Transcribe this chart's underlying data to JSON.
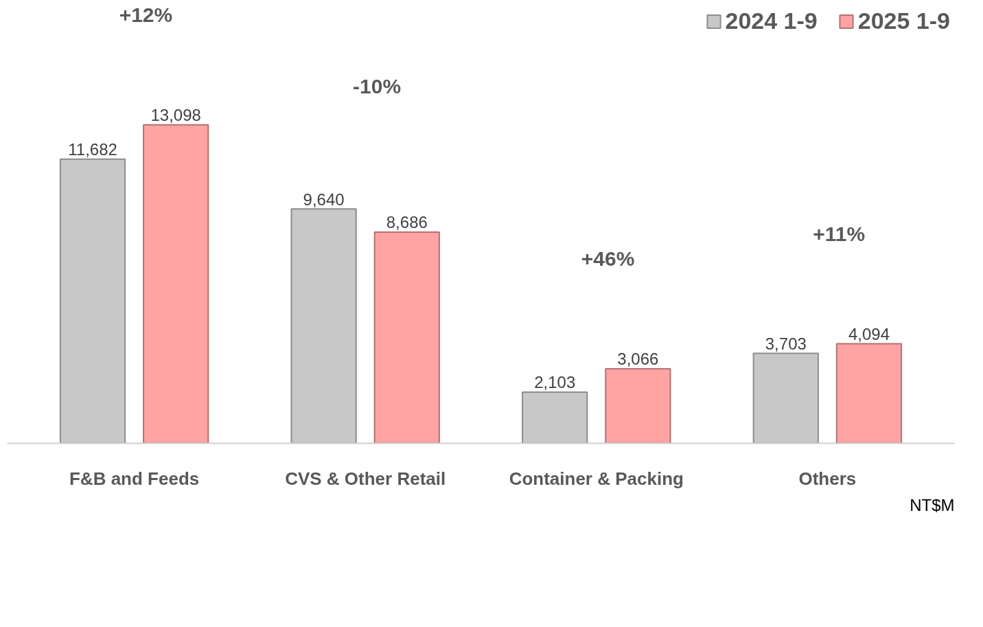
{
  "chart_data": {
    "type": "bar",
    "categories": [
      "F&B and Feeds",
      "CVS & Other Retail",
      "Container & Packing",
      "Others"
    ],
    "series": [
      {
        "name": "2024 1-9",
        "color": "#c8c8c8",
        "values": [
          11682,
          9640,
          2103,
          3703
        ],
        "value_labels": [
          "11,682",
          "9,640",
          "2,103",
          "3,703"
        ]
      },
      {
        "name": "2025 1-9",
        "color": "#ffa3a3",
        "values": [
          13098,
          8686,
          3066,
          4094
        ],
        "value_labels": [
          "13,098",
          "8,686",
          "3,066",
          "4,094"
        ]
      }
    ],
    "legend": "top right",
    "grid": false,
    "annotations": [
      "+12%",
      "-10%",
      "+46%",
      "+11%",
      "NT$M"
    ]
  }
}
